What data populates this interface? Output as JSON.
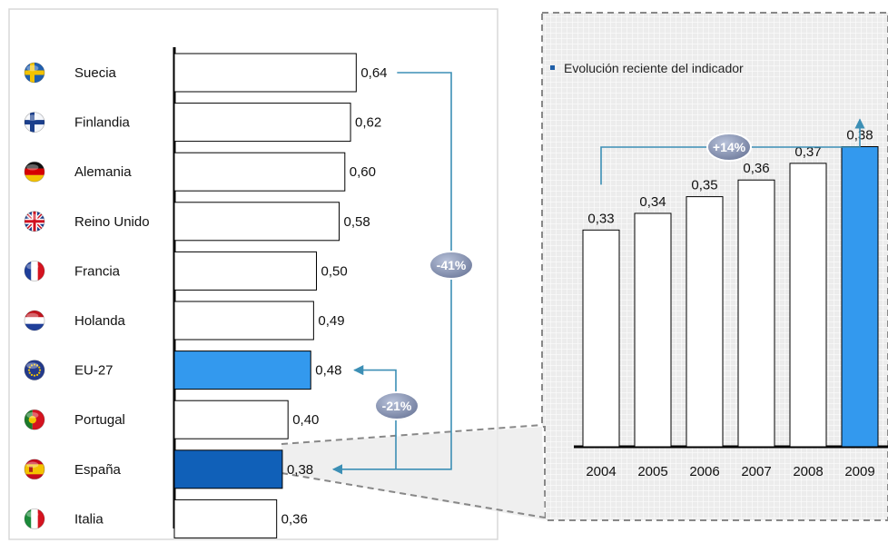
{
  "chart_data": [
    {
      "type": "bar",
      "orientation": "horizontal",
      "title": "",
      "categories": [
        "Suecia",
        "Finlandia",
        "Alemania",
        "Reino Unido",
        "Francia",
        "Holanda",
        "EU-27",
        "Portugal",
        "España",
        "Italia"
      ],
      "values": [
        0.64,
        0.62,
        0.6,
        0.58,
        0.5,
        0.49,
        0.48,
        0.4,
        0.38,
        0.36
      ],
      "value_labels": [
        "0,64",
        "0,62",
        "0,60",
        "0,58",
        "0,50",
        "0,49",
        "0,48",
        "0,40",
        "0,38",
        "0,36"
      ],
      "flag_icons": [
        "sweden-flag-icon",
        "finland-flag-icon",
        "germany-flag-icon",
        "uk-flag-icon",
        "france-flag-icon",
        "netherlands-flag-icon",
        "eu-flag-icon",
        "portugal-flag-icon",
        "spain-flag-icon",
        "italy-flag-icon"
      ],
      "highlight": {
        "EU-27": "#3399ee",
        "España": "#1060b8"
      },
      "annotations": [
        {
          "label": "-41%",
          "from": "Suecia",
          "to": "España"
        },
        {
          "label": "-21%",
          "from": "EU-27",
          "to": "España"
        }
      ]
    },
    {
      "type": "bar",
      "title": "Evolución reciente del indicador",
      "categories": [
        "2004",
        "2005",
        "2006",
        "2007",
        "2008",
        "2009"
      ],
      "values": [
        0.33,
        0.34,
        0.35,
        0.36,
        0.37,
        0.38
      ],
      "value_labels": [
        "0,33",
        "0,34",
        "0,35",
        "0,36",
        "0,37",
        "0,38"
      ],
      "highlight": {
        "2009": "#3399ee"
      },
      "annotations": [
        {
          "label": "+14%",
          "from": "2004",
          "to": "2009"
        }
      ]
    }
  ],
  "colors": {
    "bar": "#ffffff",
    "bar_stroke": "#000000",
    "connector": "#3c8fb5",
    "badge": "#8a96b4",
    "dashed": "#777777"
  }
}
